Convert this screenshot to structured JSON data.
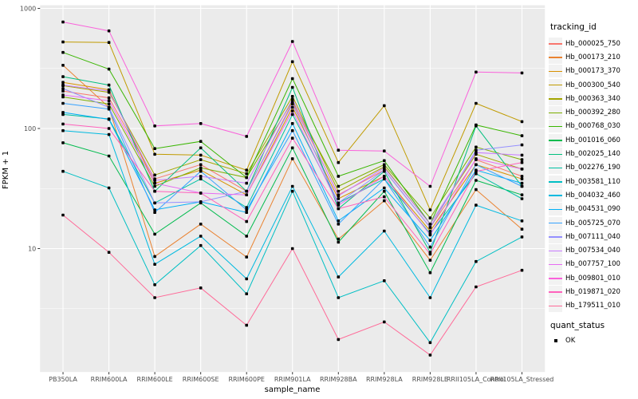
{
  "chart_data": {
    "type": "line",
    "title": "",
    "xlabel": "sample_name",
    "ylabel": "FPKM + 1",
    "y_scale": "log10",
    "y_ticks": [
      1000,
      100,
      10
    ],
    "y_minor_gridlines": [
      316.2,
      31.62,
      3.162
    ],
    "ylim": [
      0.93,
      1100
    ],
    "grid": true,
    "panel_bg": "#EBEBEB",
    "grid_color": "#FFFFFF",
    "tick_label_color": "#4D4D4D",
    "point_marker": "black-square",
    "legend_position": "right",
    "categories": [
      "PB350LA",
      "RRIM600LA",
      "RRIM600LE",
      "RRIM600SE",
      "RRIM600PE",
      "RRIM901LA",
      "RRIM928BA",
      "RRIM928LA",
      "RRIM928LE",
      "RRII105LA_Control",
      "RRII105LA_Stressed"
    ],
    "series": [
      {
        "name": "Hb_000025_750",
        "color": "#F8766D",
        "values": [
          205,
          180,
          38,
          50,
          30,
          165,
          28,
          45,
          15,
          55,
          40
        ]
      },
      {
        "name": "Hb_000173_210",
        "color": "#EA8331",
        "values": [
          336,
          150,
          8.6,
          16,
          8.5,
          56,
          12,
          25,
          8,
          31,
          14.5
        ]
      },
      {
        "name": "Hb_000173_370",
        "color": "#D89000",
        "values": [
          242,
          210,
          35,
          45,
          28,
          150,
          26,
          40,
          14,
          50,
          38
        ]
      },
      {
        "name": "Hb_000300_540",
        "color": "#C09B00",
        "values": [
          525,
          520,
          61,
          60,
          45,
          360,
          52,
          155,
          21,
          162,
          114
        ]
      },
      {
        "name": "Hb_000363_340",
        "color": "#A3A500",
        "values": [
          227,
          200,
          41,
          55,
          42,
          185,
          30,
          48,
          16,
          61,
          46
        ]
      },
      {
        "name": "Hb_000392_280",
        "color": "#7CAE00",
        "values": [
          183,
          160,
          33,
          47,
          39,
          170,
          33,
          50,
          18,
          70,
          55
        ]
      },
      {
        "name": "Hb_000768_030",
        "color": "#39B600",
        "values": [
          430,
          312,
          68,
          78,
          39,
          260,
          40,
          54,
          16,
          107,
          87
        ]
      },
      {
        "name": "Hb_001016_060",
        "color": "#00BB4E",
        "values": [
          76,
          59,
          13.2,
          24,
          12.7,
          69,
          11.3,
          30,
          6.3,
          37,
          28
        ]
      },
      {
        "name": "Hb_002025_140",
        "color": "#00BF7D",
        "values": [
          270,
          230,
          30,
          69,
          30,
          220,
          21.5,
          44,
          9.3,
          105,
          33
        ]
      },
      {
        "name": "Hb_002276_190",
        "color": "#00C1A3",
        "values": [
          131,
          120,
          24,
          38,
          22,
          131,
          24,
          38,
          13.3,
          42,
          26
        ]
      },
      {
        "name": "Hb_003581_110",
        "color": "#00BFC4",
        "values": [
          44,
          32,
          5.0,
          10.6,
          4.2,
          30,
          3.9,
          5.4,
          1.65,
          7.8,
          12.5
        ]
      },
      {
        "name": "Hb_004032_460",
        "color": "#00BAE0",
        "values": [
          96,
          89,
          7.4,
          12.7,
          5.6,
          33,
          5.8,
          14,
          3.9,
          23,
          17
        ]
      },
      {
        "name": "Hb_004531_090",
        "color": "#00B0F6",
        "values": [
          136,
          119,
          21,
          24.5,
          20,
          110,
          17,
          32,
          11.7,
          45,
          35
        ]
      },
      {
        "name": "Hb_005725_070",
        "color": "#35A2FF",
        "values": [
          162,
          145,
          20,
          44,
          21,
          96,
          16,
          38,
          10.3,
          50,
          33
        ]
      },
      {
        "name": "Hb_007111_040",
        "color": "#9590FF",
        "values": [
          215,
          150,
          24,
          24.5,
          30,
          160,
          24,
          45,
          15,
          66,
          73
        ]
      },
      {
        "name": "Hb_007534_040",
        "color": "#C77CFF",
        "values": [
          230,
          205,
          37,
          40,
          35,
          175,
          27.5,
          47,
          16,
          63,
          60
        ]
      },
      {
        "name": "Hb_007757_100",
        "color": "#E76BF3",
        "values": [
          190,
          170,
          35,
          29,
          28,
          140,
          23,
          40,
          13,
          56,
          46
        ]
      },
      {
        "name": "Hb_009801_010",
        "color": "#FA62DB",
        "values": [
          770,
          650,
          105,
          110,
          86,
          530,
          66,
          65,
          33,
          295,
          290
        ]
      },
      {
        "name": "Hb_019871_020",
        "color": "#FF62BC",
        "values": [
          109,
          100,
          30,
          29,
          16.8,
          83,
          21.5,
          27,
          9,
          44,
          52
        ]
      },
      {
        "name": "Hb_179511_010",
        "color": "#FF6A98",
        "values": [
          19,
          9.3,
          3.9,
          4.7,
          2.3,
          10,
          1.75,
          2.45,
          1.3,
          4.8,
          6.6
        ]
      }
    ]
  },
  "legend": {
    "tracking_title": "tracking_id",
    "quant_title": "quant_status",
    "quant_items": [
      {
        "label": "OK"
      }
    ]
  }
}
